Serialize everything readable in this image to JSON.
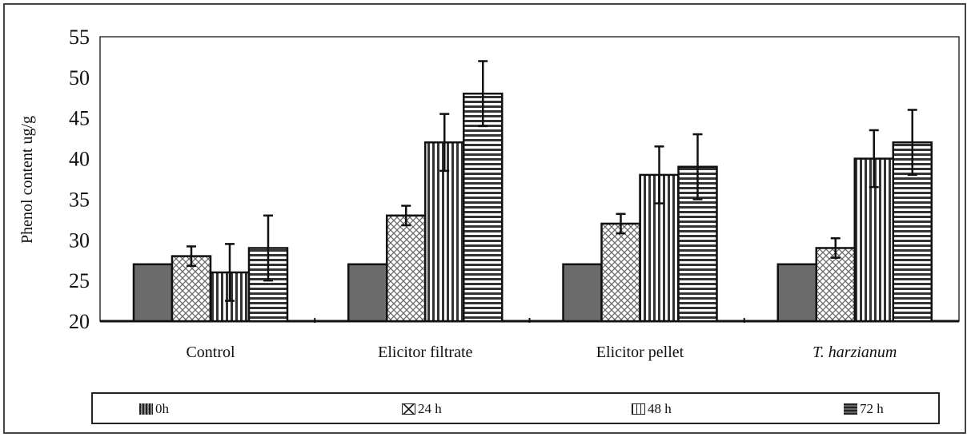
{
  "chart_data": {
    "type": "bar",
    "title": "",
    "xlabel": "",
    "ylabel": "Phenol content ug/g",
    "ylim": [
      20,
      55
    ],
    "yticks": [
      "20",
      "25",
      "30",
      "35",
      "40",
      "45",
      "50",
      "55"
    ],
    "categories": [
      "Control",
      "Elicitor filtrate",
      "Elicitor pellet",
      "T. harzianum"
    ],
    "category_italic": [
      false,
      false,
      false,
      true
    ],
    "legend_position": "bottom",
    "series": [
      {
        "name": "0h",
        "pattern": "solid",
        "values": [
          27,
          27,
          27,
          27
        ],
        "errors": [
          0,
          0,
          0,
          0
        ]
      },
      {
        "name": "24 h",
        "pattern": "crosshatch",
        "values": [
          28,
          33,
          32,
          29
        ],
        "errors": [
          1.2,
          1.2,
          1.2,
          1.2
        ]
      },
      {
        "name": "48 h",
        "pattern": "vertical",
        "values": [
          26,
          42,
          38,
          40
        ],
        "errors": [
          3.5,
          3.5,
          3.5,
          3.5
        ]
      },
      {
        "name": "72 h",
        "pattern": "horizontal",
        "values": [
          29,
          48,
          39,
          42
        ],
        "errors": [
          4,
          4,
          4,
          4
        ]
      }
    ],
    "colors": {
      "bar_fill": "#6b6b6b",
      "stroke": "#111111",
      "pattern_line": "#333333"
    }
  }
}
